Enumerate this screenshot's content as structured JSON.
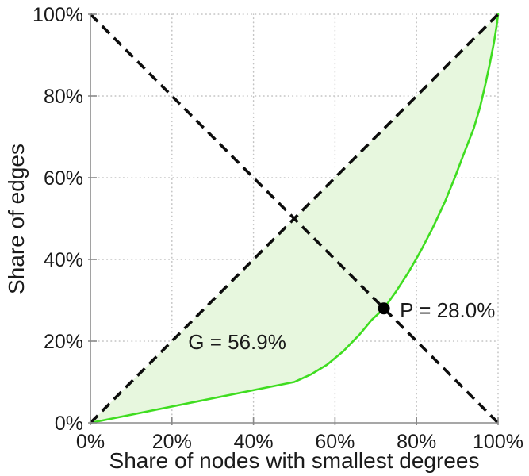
{
  "chart_data": {
    "type": "line",
    "title": "",
    "xlabel": "Share of nodes with smallest degrees",
    "ylabel": "Share of edges",
    "xlim": [
      0,
      100
    ],
    "ylim": [
      0,
      100
    ],
    "grid": "dotted",
    "legend": "none",
    "x_ticks": {
      "values": [
        0,
        20,
        40,
        60,
        80,
        100
      ],
      "labels": [
        "0%",
        "20%",
        "40%",
        "60%",
        "80%",
        "100%"
      ]
    },
    "y_ticks": {
      "values": [
        0,
        20,
        40,
        60,
        80,
        100
      ],
      "labels": [
        "0%",
        "20%",
        "40%",
        "60%",
        "80%",
        "100%"
      ]
    },
    "series": [
      {
        "name": "lorenz-curve",
        "color": "#3fdd20",
        "fill_between_diagonal": true,
        "fill_color": "#e7f7de",
        "points": [
          [
            0,
            0
          ],
          [
            50,
            10
          ],
          [
            54,
            11.8
          ],
          [
            58,
            14.2
          ],
          [
            62,
            17.5
          ],
          [
            66,
            21.6
          ],
          [
            69,
            25.2
          ],
          [
            72,
            28
          ],
          [
            75,
            32.2
          ],
          [
            78,
            36.8
          ],
          [
            81,
            42
          ],
          [
            84,
            47.8
          ],
          [
            87,
            54.2
          ],
          [
            89.5,
            60.3
          ],
          [
            91.5,
            65.6
          ],
          [
            94,
            72
          ],
          [
            95.5,
            77
          ],
          [
            96.8,
            82.5
          ],
          [
            98,
            88
          ],
          [
            99,
            93.2
          ],
          [
            99.6,
            96.8
          ],
          [
            100,
            100
          ]
        ]
      }
    ],
    "reference_lines": [
      {
        "name": "equality-diagonal",
        "from": [
          0,
          0
        ],
        "to": [
          100,
          100
        ],
        "style": "dashed",
        "color": "#0d0d0d"
      },
      {
        "name": "anti-diagonal",
        "from": [
          0,
          100
        ],
        "to": [
          100,
          0
        ],
        "style": "dashed",
        "color": "#0d0d0d"
      }
    ],
    "marker": {
      "name": "intersection-point",
      "x": 72,
      "y": 28,
      "color": "#000000"
    },
    "annotations": [
      {
        "id": "gini-label",
        "text": "G = 56.9%",
        "x": 36,
        "y": 19.8,
        "anchor": "middle"
      },
      {
        "id": "p-label",
        "text": "P = 28.0%",
        "x": 75.9,
        "y": 27.6,
        "anchor": "start"
      }
    ],
    "colors": {
      "grid": "#c3c3c3",
      "axis": "#8a8a8a",
      "text": "#1a1a1a",
      "background": "#ffffff"
    }
  }
}
